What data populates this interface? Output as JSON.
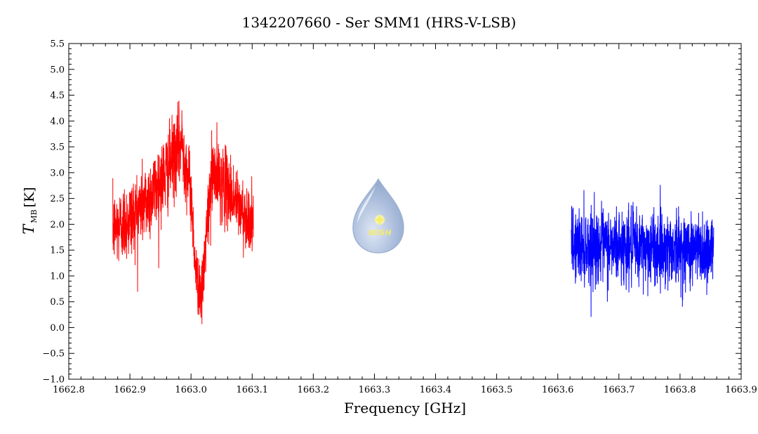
{
  "chart_data": {
    "type": "line",
    "title": "1342207660 - Ser SMM1 (HRS-V-LSB)",
    "xlabel": "Frequency [GHz]",
    "ylabel": {
      "symbol": "T",
      "subscript": "MB",
      "unit": "[K]"
    },
    "xlim": [
      1662.8,
      1663.9
    ],
    "ylim": [
      -1.0,
      5.5
    ],
    "xticks": [
      1662.8,
      1662.9,
      1663.0,
      1663.1,
      1663.2,
      1663.3,
      1663.4,
      1663.5,
      1663.6,
      1663.7,
      1663.8,
      1663.9
    ],
    "xtick_labels": [
      "1662.8",
      "1662.9",
      "1663.0",
      "1663.1",
      "1663.2",
      "1663.3",
      "1663.4",
      "1663.5",
      "1663.6",
      "1663.7",
      "1663.8",
      "1663.9"
    ],
    "yticks": [
      -1.0,
      -0.5,
      0.0,
      0.5,
      1.0,
      1.5,
      2.0,
      2.5,
      3.0,
      3.5,
      4.0,
      4.5,
      5.0,
      5.5
    ],
    "ytick_labels": [
      "−1.0",
      "−0.5",
      "0.0",
      "0.5",
      "1.0",
      "1.5",
      "2.0",
      "2.5",
      "3.0",
      "3.5",
      "4.0",
      "4.5",
      "5.0",
      "5.5"
    ],
    "series": [
      {
        "color": "#ff0000",
        "x_range": [
          1662.872,
          1663.102
        ],
        "profile": [
          [
            1662.872,
            1.9,
            0.55
          ],
          [
            1662.9,
            2.1,
            0.6
          ],
          [
            1662.93,
            2.5,
            0.6
          ],
          [
            1662.96,
            3.0,
            0.6
          ],
          [
            1662.985,
            3.6,
            0.6
          ],
          [
            1663.0,
            2.6,
            0.5
          ],
          [
            1663.008,
            1.0,
            0.45
          ],
          [
            1663.018,
            0.6,
            0.45
          ],
          [
            1663.025,
            1.8,
            0.5
          ],
          [
            1663.035,
            3.0,
            0.6
          ],
          [
            1663.06,
            2.7,
            0.55
          ],
          [
            1663.08,
            2.3,
            0.5
          ],
          [
            1663.102,
            2.0,
            0.45
          ]
        ],
        "noise_sigma_ratio": 0.5
      },
      {
        "color": "#0000ff",
        "x_range": [
          1663.622,
          1663.855
        ],
        "profile": [
          [
            1663.622,
            1.6,
            0.55
          ],
          [
            1663.855,
            1.5,
            0.55
          ]
        ],
        "noise_sigma_ratio": 0.5
      }
    ],
    "grid": false
  },
  "logo": {
    "text": "WISH"
  }
}
